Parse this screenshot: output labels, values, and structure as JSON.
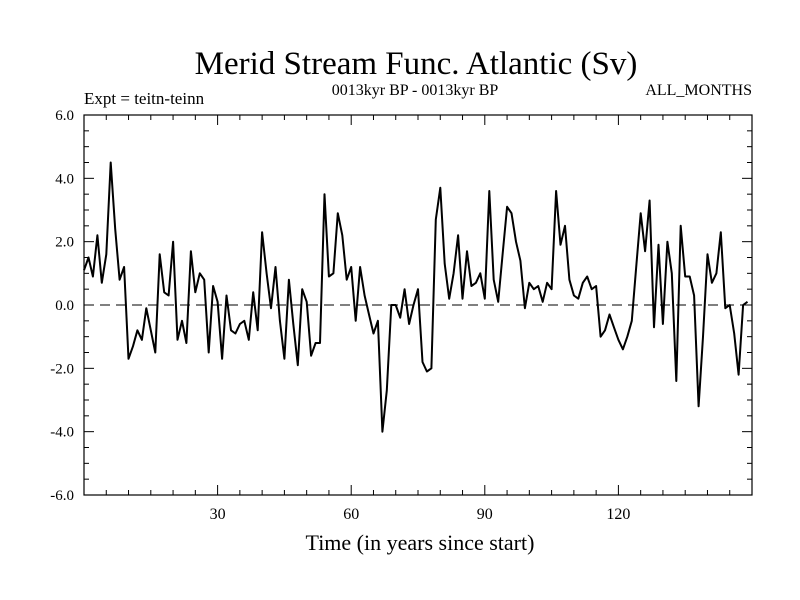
{
  "chart_data": {
    "type": "line",
    "title": "Merid Stream Func. Atlantic (Sv)",
    "subtitle_left": "Expt = teitn-teinn",
    "subtitle_center": "0013kyr BP - 0013kyr BP",
    "subtitle_right": "ALL_MONTHS",
    "xlabel": "Time (in years since start)",
    "ylabel": "",
    "xlim": [
      0,
      150
    ],
    "ylim": [
      -6,
      6
    ],
    "xticks": [
      30,
      60,
      90,
      120
    ],
    "xtick_labels": [
      "30",
      "60",
      "90",
      "120"
    ],
    "yticks": [
      -6,
      -4,
      -2,
      0,
      2,
      4,
      6
    ],
    "ytick_labels": [
      "-6.0",
      "-4.0",
      "-2.0",
      "0.0",
      "2.0",
      "4.0",
      "6.0"
    ],
    "zero_line": "dashed",
    "series": [
      {
        "name": "teitn-teinn",
        "x": [
          0,
          1,
          2,
          3,
          4,
          5,
          6,
          7,
          8,
          9,
          10,
          11,
          12,
          13,
          14,
          15,
          16,
          17,
          18,
          19,
          20,
          21,
          22,
          23,
          24,
          25,
          26,
          27,
          28,
          29,
          30,
          31,
          32,
          33,
          34,
          35,
          36,
          37,
          38,
          39,
          40,
          41,
          42,
          43,
          44,
          45,
          46,
          47,
          48,
          49,
          50,
          51,
          52,
          53,
          54,
          55,
          56,
          57,
          58,
          59,
          60,
          61,
          62,
          63,
          64,
          65,
          66,
          67,
          68,
          69,
          70,
          71,
          72,
          73,
          74,
          75,
          76,
          77,
          78,
          79,
          80,
          81,
          82,
          83,
          84,
          85,
          86,
          87,
          88,
          89,
          90,
          91,
          92,
          93,
          94,
          95,
          96,
          97,
          98,
          99,
          100,
          101,
          102,
          103,
          104,
          105,
          106,
          107,
          108,
          109,
          110,
          111,
          112,
          113,
          114,
          115,
          116,
          117,
          118,
          119,
          120,
          121,
          122,
          123,
          124,
          125,
          126,
          127,
          128,
          129,
          130,
          131,
          132,
          133,
          134,
          135,
          136,
          137,
          138,
          139,
          140,
          141,
          142,
          143,
          144,
          145,
          146,
          147,
          148,
          149
        ],
        "values": [
          1.1,
          1.5,
          0.9,
          2.2,
          0.7,
          1.6,
          4.5,
          2.4,
          0.8,
          1.2,
          -1.7,
          -1.3,
          -0.8,
          -1.1,
          -0.1,
          -0.8,
          -1.5,
          1.6,
          0.4,
          0.3,
          2.0,
          -1.1,
          -0.5,
          -1.2,
          1.7,
          0.4,
          1.0,
          0.8,
          -1.5,
          0.6,
          0.1,
          -1.7,
          0.3,
          -0.8,
          -0.9,
          -0.6,
          -0.5,
          -1.1,
          0.4,
          -0.8,
          2.3,
          1.0,
          -0.1,
          1.2,
          -0.5,
          -1.7,
          0.8,
          -0.6,
          -1.9,
          0.5,
          0.1,
          -1.6,
          -1.2,
          -1.2,
          3.5,
          0.9,
          1.0,
          2.9,
          2.2,
          0.8,
          1.2,
          -0.5,
          1.2,
          0.3,
          -0.3,
          -0.9,
          -0.5,
          -4.0,
          -2.7,
          0.0,
          0.0,
          -0.4,
          0.5,
          -0.6,
          0.0,
          0.5,
          -1.8,
          -2.1,
          -2.0,
          2.7,
          3.7,
          1.3,
          0.2,
          1.0,
          2.2,
          0.2,
          1.7,
          0.6,
          0.7,
          1.0,
          0.2,
          3.6,
          0.8,
          0.1,
          1.6,
          3.1,
          2.9,
          2.0,
          1.4,
          -0.1,
          0.7,
          0.5,
          0.6,
          0.1,
          0.7,
          0.5,
          3.6,
          1.9,
          2.5,
          0.8,
          0.3,
          0.2,
          0.7,
          0.9,
          0.5,
          0.6,
          -1.0,
          -0.8,
          -0.3,
          -0.7,
          -1.1,
          -1.4,
          -1.0,
          -0.5,
          1.2,
          2.9,
          1.7,
          3.3,
          -0.7,
          1.9,
          -0.6,
          2.0,
          1.0,
          -2.4,
          2.5,
          0.9,
          0.9,
          0.3,
          -3.2,
          -1.0,
          1.6,
          0.7,
          1.0,
          2.3,
          -0.1,
          0.0,
          -0.9,
          -2.2,
          0.0,
          0.1
        ]
      }
    ]
  }
}
